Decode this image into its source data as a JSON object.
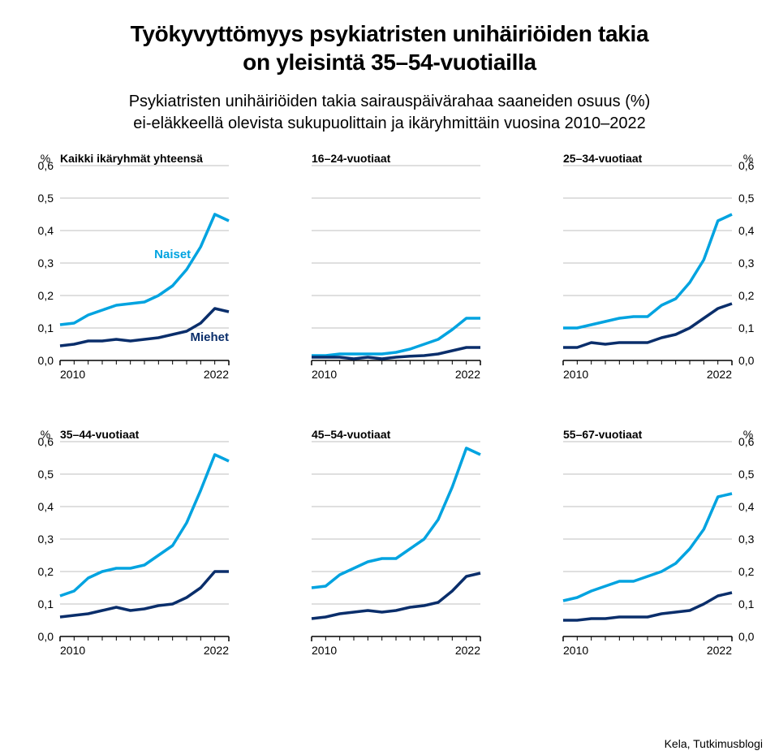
{
  "title_line1": "Työkyvyttömyys psykiatristen unihäiriöiden takia",
  "title_line2": "on yleisintä 35–54-vuotiailla",
  "subtitle_line1": "Psykiatristen unihäiriöiden takia sairauspäivärahaa saaneiden osuus (%)",
  "subtitle_line2": "ei-eläkkeellä olevista sukupuolittain ja ikäryhmittäin vuosina 2010–2022",
  "credit": "Kela, Tutkimusblogi",
  "colors": {
    "women": "#00a3e0",
    "men": "#0a2e6b",
    "grid": "#bfbfbf",
    "axis": "#000000",
    "text": "#000000",
    "bg": "#ffffff"
  },
  "segment_label_women": "Naiset",
  "segment_label_men": "Miehet",
  "chart_global": {
    "xlim": [
      2010,
      2022
    ],
    "ylim": [
      0.0,
      0.6
    ],
    "yticks": [
      0.0,
      0.1,
      0.2,
      0.3,
      0.4,
      0.5,
      0.6
    ],
    "xticks": [
      2010,
      2022
    ],
    "ylabel": "%",
    "line_width": 3.5,
    "title_fontsize": 14,
    "tick_fontsize": 14,
    "grid_width": 1
  },
  "years": [
    2010,
    2011,
    2012,
    2013,
    2014,
    2015,
    2016,
    2017,
    2018,
    2019,
    2020,
    2021,
    2022
  ],
  "panels": [
    {
      "title": "Kaikki ikäryhmät yhteensä",
      "axis": "left",
      "show_segment_labels": true,
      "women": [
        0.11,
        0.115,
        0.14,
        0.155,
        0.17,
        0.175,
        0.18,
        0.2,
        0.23,
        0.28,
        0.35,
        0.45,
        0.43
      ],
      "men": [
        0.045,
        0.05,
        0.06,
        0.06,
        0.065,
        0.06,
        0.065,
        0.07,
        0.08,
        0.09,
        0.115,
        0.16,
        0.15
      ]
    },
    {
      "title": "16–24-vuotiaat",
      "axis": "none",
      "show_segment_labels": false,
      "women": [
        0.015,
        0.015,
        0.02,
        0.02,
        0.02,
        0.02,
        0.025,
        0.035,
        0.05,
        0.065,
        0.095,
        0.13,
        0.13
      ],
      "men": [
        0.01,
        0.01,
        0.01,
        0.005,
        0.01,
        0.005,
        0.01,
        0.013,
        0.015,
        0.02,
        0.03,
        0.04,
        0.04
      ]
    },
    {
      "title": "25–34-vuotiaat",
      "axis": "right",
      "show_segment_labels": false,
      "women": [
        0.1,
        0.1,
        0.11,
        0.12,
        0.13,
        0.135,
        0.135,
        0.17,
        0.19,
        0.24,
        0.31,
        0.43,
        0.45
      ],
      "men": [
        0.04,
        0.04,
        0.055,
        0.05,
        0.055,
        0.055,
        0.055,
        0.07,
        0.08,
        0.1,
        0.13,
        0.16,
        0.175
      ]
    },
    {
      "title": "35–44-vuotiaat",
      "axis": "left",
      "show_segment_labels": false,
      "women": [
        0.125,
        0.14,
        0.18,
        0.2,
        0.21,
        0.21,
        0.22,
        0.25,
        0.28,
        0.35,
        0.45,
        0.56,
        0.54
      ],
      "men": [
        0.06,
        0.065,
        0.07,
        0.08,
        0.09,
        0.08,
        0.085,
        0.095,
        0.1,
        0.12,
        0.15,
        0.2,
        0.2
      ]
    },
    {
      "title": "45–54-vuotiaat",
      "axis": "none",
      "show_segment_labels": false,
      "women": [
        0.15,
        0.155,
        0.19,
        0.21,
        0.23,
        0.24,
        0.24,
        0.27,
        0.3,
        0.36,
        0.46,
        0.58,
        0.56
      ],
      "men": [
        0.055,
        0.06,
        0.07,
        0.075,
        0.08,
        0.075,
        0.08,
        0.09,
        0.095,
        0.105,
        0.14,
        0.185,
        0.195
      ]
    },
    {
      "title": "55–67-vuotiaat",
      "axis": "right",
      "show_segment_labels": false,
      "women": [
        0.11,
        0.12,
        0.14,
        0.155,
        0.17,
        0.17,
        0.185,
        0.2,
        0.225,
        0.27,
        0.33,
        0.43,
        0.44
      ],
      "men": [
        0.05,
        0.05,
        0.055,
        0.055,
        0.06,
        0.06,
        0.06,
        0.07,
        0.075,
        0.08,
        0.1,
        0.125,
        0.135
      ]
    }
  ]
}
